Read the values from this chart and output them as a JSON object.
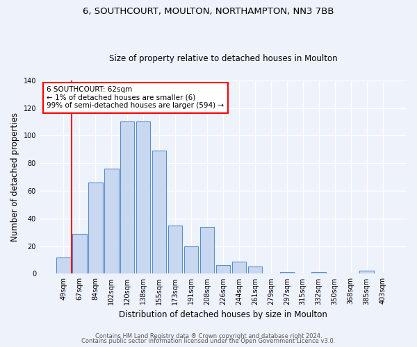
{
  "title1": "6, SOUTHCOURT, MOULTON, NORTHAMPTON, NN3 7BB",
  "title2": "Size of property relative to detached houses in Moulton",
  "xlabel": "Distribution of detached houses by size in Moulton",
  "ylabel": "Number of detached properties",
  "categories": [
    "49sqm",
    "67sqm",
    "84sqm",
    "102sqm",
    "120sqm",
    "138sqm",
    "155sqm",
    "173sqm",
    "191sqm",
    "208sqm",
    "226sqm",
    "244sqm",
    "261sqm",
    "279sqm",
    "297sqm",
    "315sqm",
    "332sqm",
    "350sqm",
    "368sqm",
    "385sqm",
    "403sqm"
  ],
  "values": [
    12,
    29,
    66,
    76,
    110,
    110,
    89,
    35,
    20,
    34,
    6,
    9,
    5,
    0,
    1,
    0,
    1,
    0,
    0,
    2,
    0
  ],
  "bar_color": "#c8d8f0",
  "bar_edge_color": "#5b8fc9",
  "annotation_box_text": "6 SOUTHCOURT: 62sqm\n← 1% of detached houses are smaller (6)\n99% of semi-detached houses are larger (594) →",
  "annotation_box_color": "white",
  "annotation_box_edge_color": "red",
  "vline_color": "red",
  "vline_x": 0.5,
  "background_color": "#eef2fb",
  "grid_color": "white",
  "ylim": [
    0,
    140
  ],
  "yticks": [
    0,
    20,
    40,
    60,
    80,
    100,
    120,
    140
  ],
  "footer_line1": "Contains HM Land Registry data ® Crown copyright and database right 2024.",
  "footer_line2": "Contains public sector information licensed under the Open Government Licence v3.0.",
  "title1_fontsize": 9.5,
  "title2_fontsize": 8.5,
  "ylabel_fontsize": 8.5,
  "xlabel_fontsize": 8.5,
  "tick_fontsize": 7,
  "annot_fontsize": 7.5,
  "footer_fontsize": 6,
  "bar_width": 0.9
}
